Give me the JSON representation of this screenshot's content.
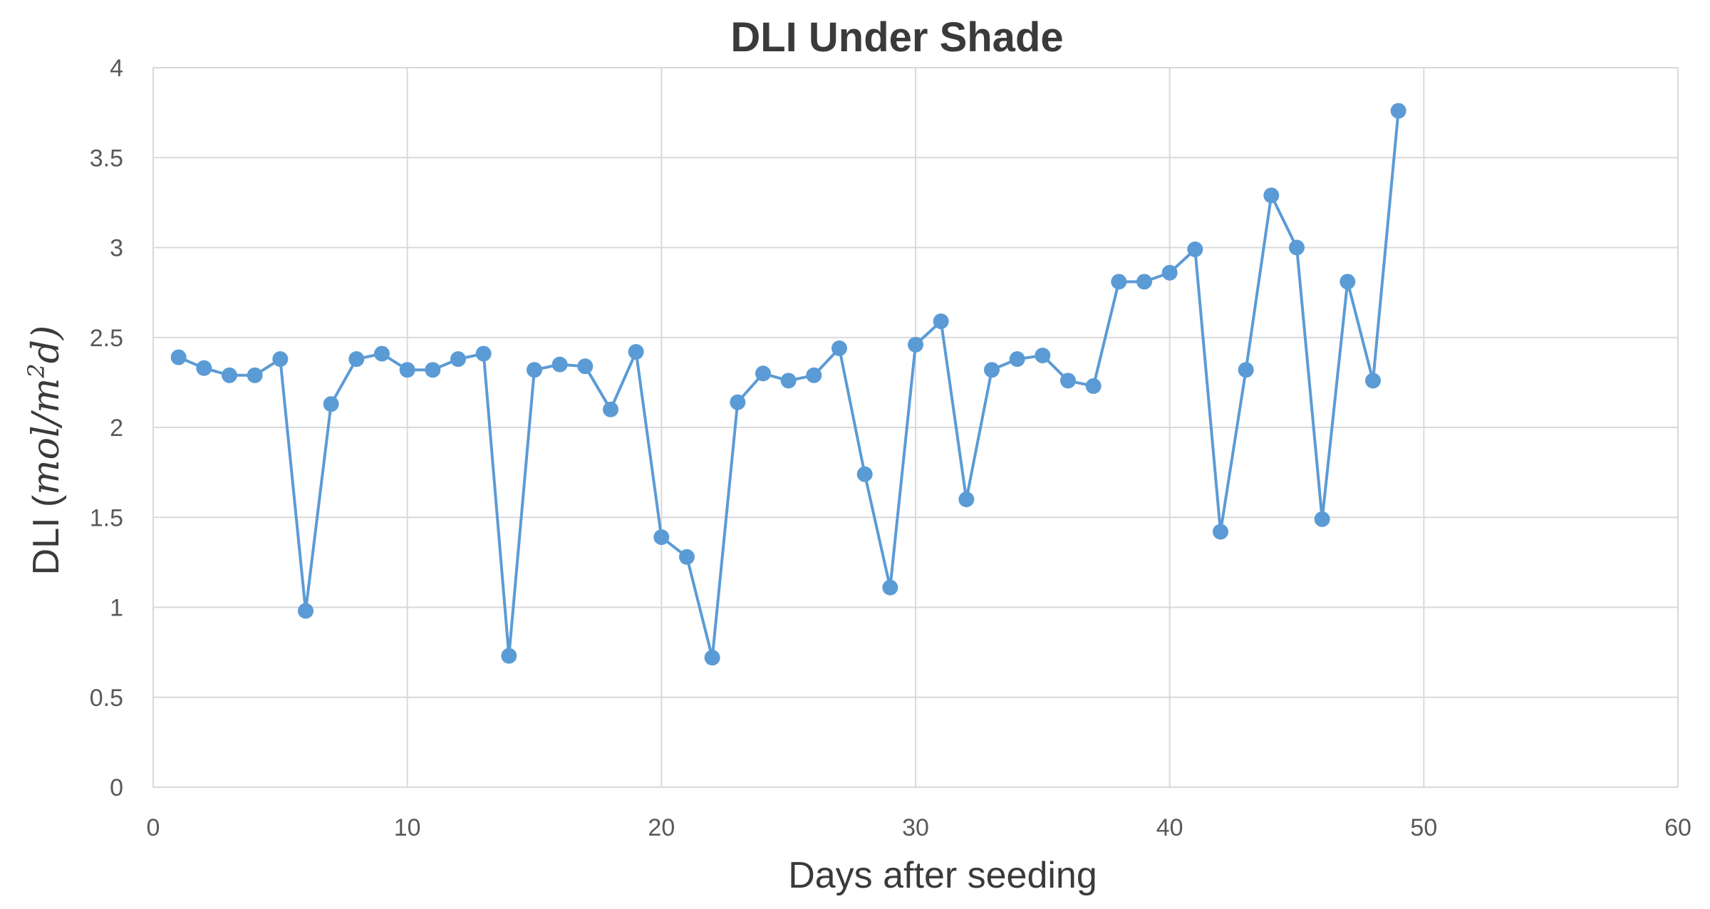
{
  "chart_data": {
    "type": "line",
    "title": "DLI Under Shade",
    "xlabel": "Days after seeding",
    "ylabel_prefix": "DLI (",
    "ylabel_math": "mol/m",
    "ylabel_sup": "2",
    "ylabel_suffix": "d)",
    "xlim": [
      0,
      60
    ],
    "ylim": [
      0,
      4
    ],
    "xticks": [
      0,
      10,
      20,
      30,
      40,
      50,
      60
    ],
    "yticks": [
      0,
      0.5,
      1,
      1.5,
      2,
      2.5,
      3,
      3.5,
      4
    ],
    "grid": true,
    "legend": "none",
    "series": [
      {
        "color": "#5b9bd5",
        "marker": "circle",
        "x": [
          1,
          2,
          3,
          4,
          5,
          6,
          7,
          8,
          9,
          10,
          11,
          12,
          13,
          14,
          15,
          16,
          17,
          18,
          19,
          20,
          21,
          22,
          23,
          24,
          25,
          26,
          27,
          28,
          29,
          30,
          31,
          32,
          33,
          34,
          35,
          36,
          37,
          38,
          39,
          40,
          41,
          42,
          43,
          44,
          45,
          46,
          47,
          48,
          49
        ],
        "y": [
          2.39,
          2.33,
          2.29,
          2.29,
          2.38,
          0.98,
          2.13,
          2.38,
          2.41,
          2.32,
          2.32,
          2.38,
          2.41,
          0.73,
          2.32,
          2.35,
          2.34,
          2.1,
          2.42,
          1.39,
          1.28,
          0.72,
          2.14,
          2.3,
          2.26,
          2.29,
          2.44,
          1.74,
          1.11,
          2.46,
          2.59,
          1.6,
          2.32,
          2.38,
          2.4,
          2.26,
          2.23,
          2.81,
          2.81,
          2.86,
          2.99,
          1.42,
          2.32,
          3.29,
          3.0,
          1.49,
          2.81,
          2.26,
          3.76
        ]
      }
    ]
  }
}
